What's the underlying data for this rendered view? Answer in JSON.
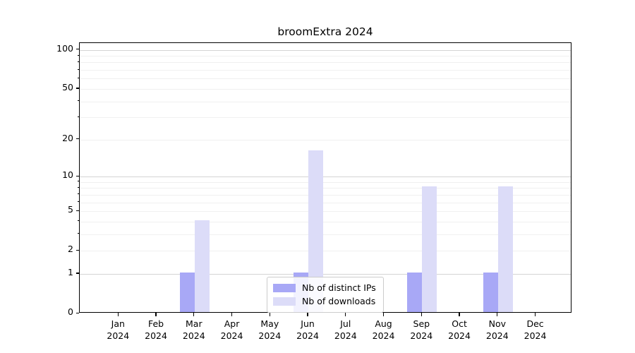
{
  "title": "broomExtra 2024",
  "chart_data": {
    "type": "bar",
    "title": "broomExtra 2024",
    "x_ticks": [
      {
        "line1": "Jan",
        "line2": "2024"
      },
      {
        "line1": "Feb",
        "line2": "2024"
      },
      {
        "line1": "Mar",
        "line2": "2024"
      },
      {
        "line1": "Apr",
        "line2": "2024"
      },
      {
        "line1": "May",
        "line2": "2024"
      },
      {
        "line1": "Jun",
        "line2": "2024"
      },
      {
        "line1": "Jul",
        "line2": "2024"
      },
      {
        "line1": "Aug",
        "line2": "2024"
      },
      {
        "line1": "Sep",
        "line2": "2024"
      },
      {
        "line1": "Oct",
        "line2": "2024"
      },
      {
        "line1": "Nov",
        "line2": "2024"
      },
      {
        "line1": "Dec",
        "line2": "2024"
      }
    ],
    "series": [
      {
        "name": "Nb of distinct IPs",
        "color": "#a8a8f6",
        "values": [
          0,
          0,
          1,
          0,
          0,
          1,
          0,
          0,
          1,
          0,
          1,
          0
        ]
      },
      {
        "name": "Nb of downloads",
        "color": "#dcdcf8",
        "values": [
          0,
          0,
          4,
          0,
          0,
          16,
          0,
          0,
          8,
          0,
          8,
          0
        ]
      }
    ],
    "y_axis": {
      "scale": "log1p",
      "tick_values": [
        0,
        1,
        2,
        5,
        10,
        20,
        50,
        100
      ],
      "major_gridlines": [
        1,
        10,
        100
      ],
      "minor_gridlines": [
        2,
        3,
        4,
        5,
        6,
        7,
        8,
        9,
        20,
        30,
        40,
        50,
        60,
        70,
        80,
        90
      ],
      "ylim": [
        0,
        113
      ]
    },
    "legend": {
      "position": "lower center"
    },
    "colors": {
      "major_grid": "#d4d4d4",
      "minor_grid": "#f0f0f0",
      "spine": "#000000",
      "text": "#000000"
    },
    "grid": true
  }
}
